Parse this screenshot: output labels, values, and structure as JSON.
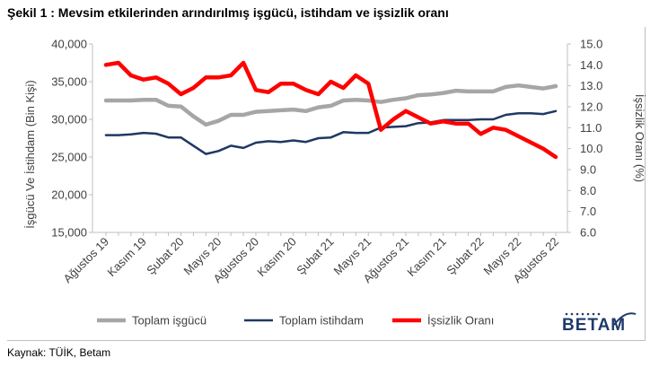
{
  "title": "Şekil 1 : Mevsim etkilerinden arındırılmış işgücü, istihdam ve işsizlik oranı",
  "source": "Kaynak: TÜİK, Betam",
  "logo": {
    "text": "BETAM",
    "icon": "betam-logo"
  },
  "chart_data": {
    "type": "line",
    "x": [
      "Ağustos 19",
      "Eylül 19",
      "Ekim 19",
      "Kasım 19",
      "Aralık 19",
      "Ocak 20",
      "Şubat 20",
      "Mart 20",
      "Nisan 20",
      "Mayıs 20",
      "Haziran 20",
      "Temmuz 20",
      "Ağustos 20",
      "Eylül 20",
      "Ekim 20",
      "Kasım 20",
      "Aralık 20",
      "Ocak 21",
      "Şubat 21",
      "Mart 21",
      "Nisan 21",
      "Mayıs 21",
      "Haziran 21",
      "Temmuz 21",
      "Ağustos 21",
      "Eylül 21",
      "Ekim 21",
      "Kasım 21",
      "Aralık 21",
      "Ocak 22",
      "Şubat 22",
      "Mart 22",
      "Nisan 22",
      "Mayıs 22",
      "Haziran 22",
      "Temmuz 22",
      "Ağustos 22"
    ],
    "xtick_labels": [
      "Ağustos 19",
      "Kasım 19",
      "Şubat 20",
      "Mayıs 20",
      "Ağustos 20",
      "Kasım 20",
      "Şubat 21",
      "Mayıs 21",
      "Ağustos 21",
      "Kasım 21",
      "Şubat 22",
      "Mayıs 22",
      "Ağustos 22"
    ],
    "ylabel": "İşgücü Ve İstihdam (Bin Kişi)",
    "ylabel_right": "İşsizlik Oranı (%)",
    "ylim": [
      15000,
      40000
    ],
    "yticks": [
      "15,000",
      "20,000",
      "25,000",
      "30,000",
      "35,000",
      "40,000"
    ],
    "ylim_right": [
      6.0,
      15.0
    ],
    "yticks_right": [
      "6.0",
      "7.0",
      "8.0",
      "9.0",
      "10.0",
      "11.0",
      "12.0",
      "13.0",
      "14.0",
      "15.0"
    ],
    "grid": false,
    "legend_position": "bottom",
    "series": [
      {
        "name": "Toplam işgücü",
        "axis": "left",
        "color": "#a6a6a6",
        "values": [
          32500,
          32500,
          32500,
          32600,
          32600,
          31800,
          31700,
          30400,
          29300,
          29800,
          30600,
          30600,
          31000,
          31100,
          31200,
          31300,
          31100,
          31600,
          31800,
          32500,
          32600,
          32500,
          32300,
          32600,
          32800,
          33200,
          33300,
          33500,
          33800,
          33700,
          33700,
          33700,
          34300,
          34500,
          34300,
          34100,
          34400
        ]
      },
      {
        "name": "Toplam istihdam",
        "axis": "left",
        "color": "#1f3864",
        "values": [
          27900,
          27900,
          28000,
          28200,
          28100,
          27600,
          27600,
          26500,
          25400,
          25800,
          26500,
          26200,
          26900,
          27100,
          27000,
          27200,
          27000,
          27500,
          27600,
          28300,
          28200,
          28200,
          28900,
          29000,
          29100,
          29500,
          29600,
          29900,
          29900,
          29900,
          30000,
          30000,
          30600,
          30800,
          30800,
          30700,
          31100
        ]
      },
      {
        "name": "İşsizlik Oranı",
        "axis": "right",
        "color": "#ff0000",
        "values": [
          14.0,
          14.1,
          13.5,
          13.3,
          13.4,
          13.1,
          12.6,
          12.9,
          13.4,
          13.4,
          13.5,
          14.1,
          12.8,
          12.7,
          13.1,
          13.1,
          12.8,
          12.6,
          13.2,
          12.9,
          13.5,
          13.1,
          10.9,
          11.4,
          11.8,
          11.5,
          11.2,
          11.3,
          11.2,
          11.2,
          10.7,
          11.0,
          10.9,
          10.6,
          10.3,
          10.0,
          9.6
        ]
      }
    ],
    "colors": {
      "workforce": "#a6a6a6",
      "employment": "#1f3864",
      "unemployment": "#ff0000",
      "axis": "#bfbfbf"
    }
  }
}
